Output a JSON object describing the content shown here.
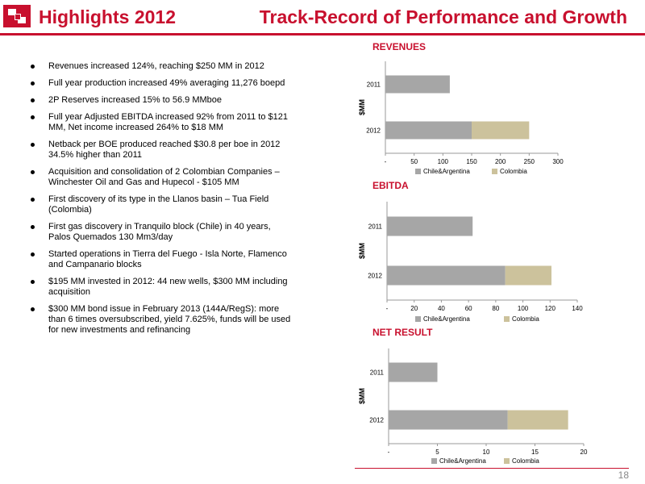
{
  "header": {
    "left_title": "Highlights 2012",
    "right_title": "Track-Record of Performance and Growth"
  },
  "bullets": [
    "Revenues increased 124%, reaching $250 MM in 2012",
    "Full year production increased 49% averaging 11,276 boepd",
    "2P Reserves increased 15% to 56.9 MMboe",
    "Full year Adjusted EBITDA increased 92% from 2011 to $121 MM, Net income increased 264% to $18 MM",
    "Netback per BOE produced reached $30.8 per boe in 2012 34.5% higher than 2011",
    "Acquisition and consolidation of 2 Colombian Companies – Winchester Oil and Gas and Hupecol - $105 MM",
    "First discovery of its type in the Llanos basin – Tua Field (Colombia)",
    "First gas discovery in Tranquilo block (Chile) in 40 years, Palos Quemados 130 Mm3/day",
    "Started operations in Tierra del Fuego - Isla Norte, Flamenco and Campanario blocks",
    "$195 MM invested in 2012: 44 new wells, $300 MM including acquisition",
    "$300 MM bond issue in February 2013 (144A/RegS): more than 6 times oversubscribed, yield 7.625%, funds will be used for new investments and refinancing"
  ],
  "colors": {
    "accent": "#c8102e",
    "chile_argentina": "#a6a6a6",
    "colombia": "#ccc29c"
  },
  "page_number": "18",
  "chart_data": [
    {
      "type": "bar",
      "orientation": "horizontal",
      "stacked": true,
      "title": "REVENUES",
      "ylabel": "$MM",
      "categories": [
        "2011",
        "2012"
      ],
      "series": [
        {
          "name": "Chile&Argentina",
          "values": [
            112,
            150
          ]
        },
        {
          "name": "Colombia",
          "values": [
            0,
            100
          ]
        }
      ],
      "xlim": [
        0,
        300
      ],
      "xticks": [
        0,
        50,
        100,
        150,
        200,
        250,
        300
      ],
      "xtick_labels": [
        "-",
        "50",
        "100",
        "150",
        "200",
        "250",
        "300"
      ],
      "legend": "bottom"
    },
    {
      "type": "bar",
      "orientation": "horizontal",
      "stacked": true,
      "title": "EBITDA",
      "ylabel": "$MM",
      "categories": [
        "2011",
        "2012"
      ],
      "series": [
        {
          "name": "Chile&Argentina",
          "values": [
            63,
            87
          ]
        },
        {
          "name": "Colombia",
          "values": [
            0,
            34
          ]
        }
      ],
      "xlim": [
        0,
        140
      ],
      "xticks": [
        0,
        20,
        40,
        60,
        80,
        100,
        120,
        140
      ],
      "xtick_labels": [
        "-",
        "20",
        "40",
        "60",
        "80",
        "100",
        "120",
        "140"
      ],
      "legend": "bottom"
    },
    {
      "type": "bar",
      "orientation": "horizontal",
      "stacked": true,
      "title": "NET RESULT",
      "ylabel": "$MM",
      "categories": [
        "2011",
        "2012"
      ],
      "series": [
        {
          "name": "Chile&Argentina",
          "values": [
            5,
            12.2
          ]
        },
        {
          "name": "Colombia",
          "values": [
            0,
            6.2
          ]
        }
      ],
      "xlim": [
        0,
        20
      ],
      "xticks": [
        0,
        5,
        10,
        15,
        20
      ],
      "xtick_labels": [
        "-",
        "5",
        "10",
        "15",
        "20"
      ],
      "legend": "bottom"
    }
  ]
}
